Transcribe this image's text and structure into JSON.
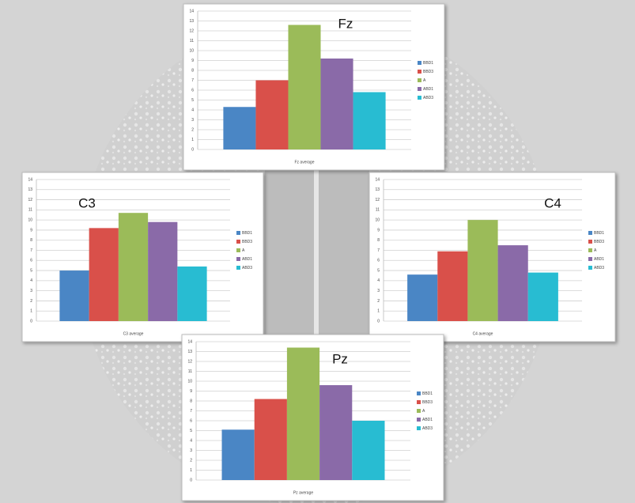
{
  "chart_data": [
    {
      "type": "bar",
      "title": "Fz",
      "categories": [
        "Fz average"
      ],
      "ylim": [
        0,
        14
      ],
      "yticks": [
        0,
        1,
        2,
        3,
        4,
        5,
        6,
        7,
        8,
        9,
        10,
        11,
        12,
        13,
        14
      ],
      "grid": true,
      "legend": "right",
      "series": [
        {
          "name": "BBD1",
          "color": "#4a86c5",
          "values": [
            4.3
          ]
        },
        {
          "name": "BBD3",
          "color": "#d9504a",
          "values": [
            7.0
          ]
        },
        {
          "name": "A",
          "color": "#9bbb59",
          "values": [
            12.6
          ]
        },
        {
          "name": "ABD1",
          "color": "#8a6aa8",
          "values": [
            9.2
          ]
        },
        {
          "name": "ABD3",
          "color": "#28bcd2",
          "values": [
            5.8
          ]
        }
      ]
    },
    {
      "type": "bar",
      "title": "C3",
      "categories": [
        "C3 average"
      ],
      "ylim": [
        0,
        14
      ],
      "yticks": [
        0,
        1,
        2,
        3,
        4,
        5,
        6,
        7,
        8,
        9,
        10,
        11,
        12,
        13,
        14
      ],
      "grid": true,
      "legend": "right",
      "series": [
        {
          "name": "BBD1",
          "color": "#4a86c5",
          "values": [
            5.0
          ]
        },
        {
          "name": "BBD3",
          "color": "#d9504a",
          "values": [
            9.2
          ]
        },
        {
          "name": "A",
          "color": "#9bbb59",
          "values": [
            10.7
          ]
        },
        {
          "name": "ABD1",
          "color": "#8a6aa8",
          "values": [
            9.8
          ]
        },
        {
          "name": "ABD3",
          "color": "#28bcd2",
          "values": [
            5.4
          ]
        }
      ]
    },
    {
      "type": "bar",
      "title": "C4",
      "categories": [
        "C4 average"
      ],
      "ylim": [
        0,
        14
      ],
      "yticks": [
        0,
        1,
        2,
        3,
        4,
        5,
        6,
        7,
        8,
        9,
        10,
        11,
        12,
        13,
        14
      ],
      "grid": true,
      "legend": "right",
      "series": [
        {
          "name": "BBD1",
          "color": "#4a86c5",
          "values": [
            4.6
          ]
        },
        {
          "name": "BBD3",
          "color": "#d9504a",
          "values": [
            6.9
          ]
        },
        {
          "name": "A",
          "color": "#9bbb59",
          "values": [
            10.0
          ]
        },
        {
          "name": "ABD1",
          "color": "#8a6aa8",
          "values": [
            7.5
          ]
        },
        {
          "name": "ABD3",
          "color": "#28bcd2",
          "values": [
            4.8
          ]
        }
      ]
    },
    {
      "type": "bar",
      "title": "Pz",
      "categories": [
        "Pz average"
      ],
      "ylim": [
        0,
        14
      ],
      "yticks": [
        0,
        1,
        2,
        3,
        4,
        5,
        6,
        7,
        8,
        9,
        10,
        11,
        12,
        13,
        14
      ],
      "grid": true,
      "legend": "right",
      "series": [
        {
          "name": "BBD1",
          "color": "#4a86c5",
          "values": [
            5.1
          ]
        },
        {
          "name": "BBD3",
          "color": "#d9504a",
          "values": [
            8.2
          ]
        },
        {
          "name": "A",
          "color": "#9bbb59",
          "values": [
            13.4
          ]
        },
        {
          "name": "ABD1",
          "color": "#8a6aa8",
          "values": [
            9.6
          ]
        },
        {
          "name": "ABD3",
          "color": "#28bcd2",
          "values": [
            6.0
          ]
        }
      ]
    }
  ]
}
